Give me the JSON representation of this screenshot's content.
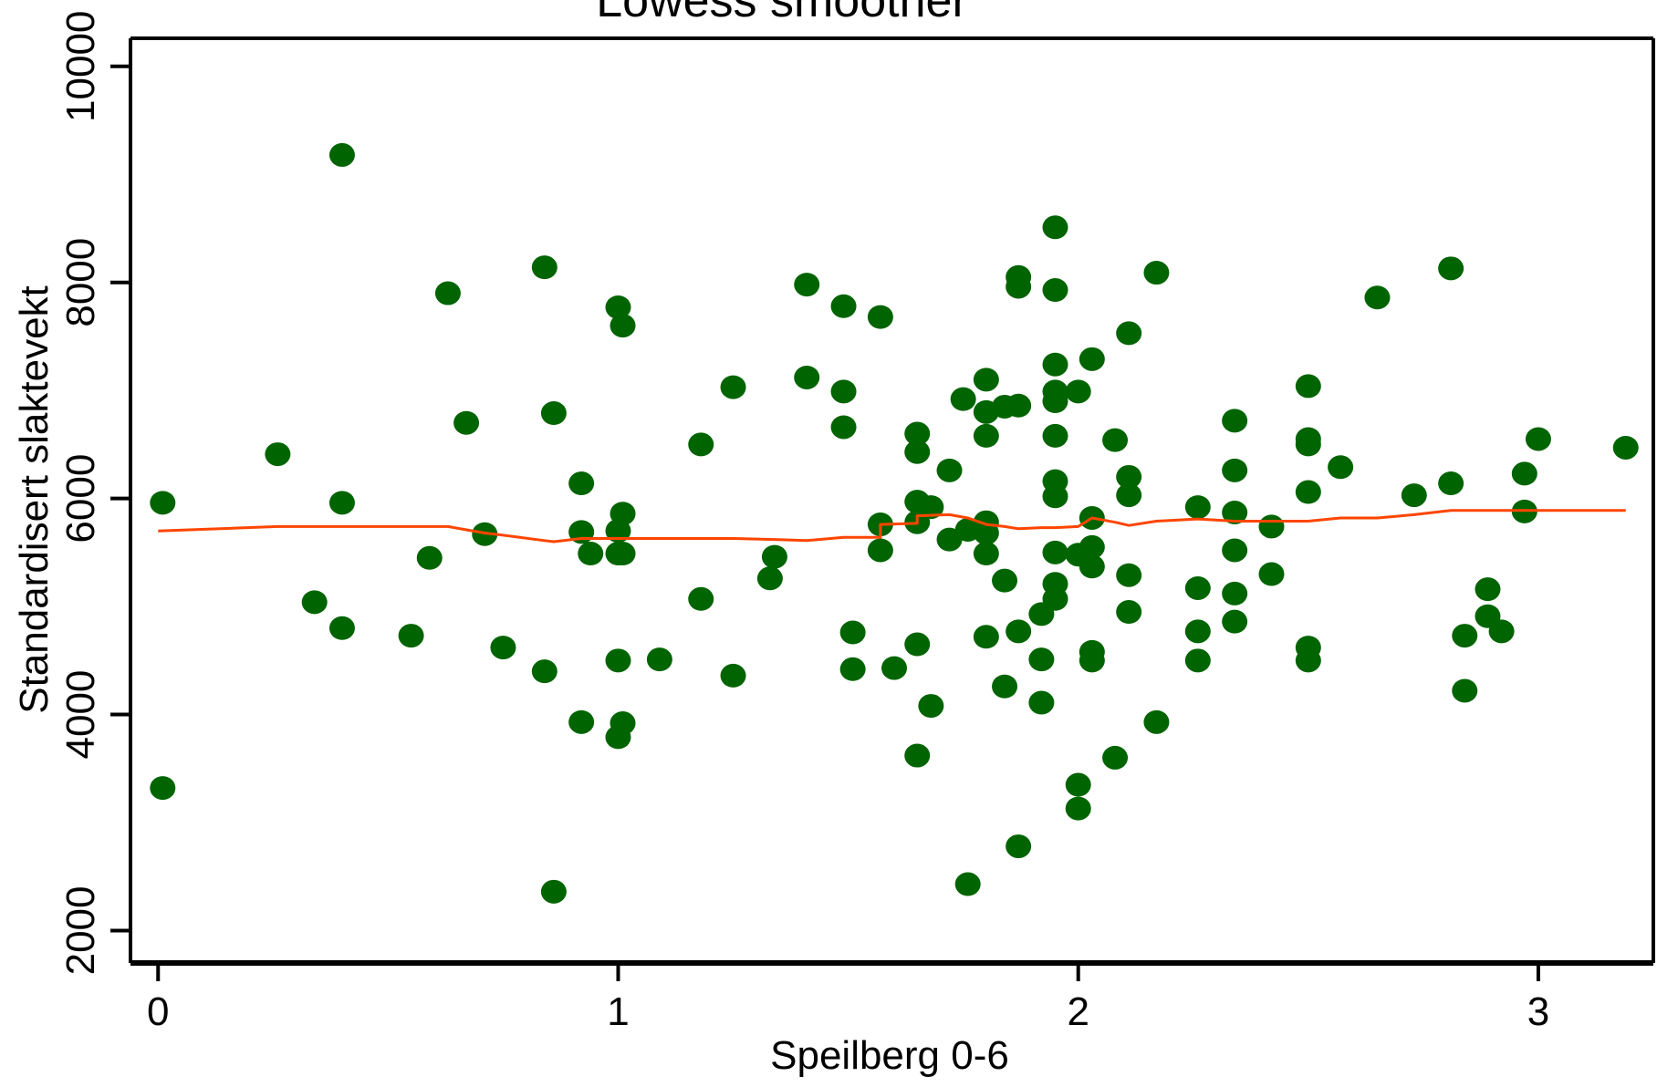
{
  "chart_data": {
    "type": "scatter",
    "title": "Lowess smoother",
    "xlabel": "Speilberg 0-6",
    "ylabel": "Standardisert slaktevekt",
    "xlim": [
      -0.06,
      3.25
    ],
    "ylim": [
      1700,
      10260
    ],
    "xticks": [
      0,
      1,
      2,
      3
    ],
    "yticks": [
      2000,
      4000,
      6000,
      8000,
      10000
    ],
    "grid": false,
    "colors": {
      "points": "#006400",
      "smoother": "#ff4500"
    },
    "series": [
      {
        "kind": "scatter",
        "points": [
          [
            0.01,
            5960
          ],
          [
            0.01,
            3320
          ],
          [
            0.26,
            6410
          ],
          [
            0.34,
            5040
          ],
          [
            0.4,
            9180
          ],
          [
            0.4,
            5960
          ],
          [
            0.4,
            4800
          ],
          [
            0.55,
            4730
          ],
          [
            0.59,
            5450
          ],
          [
            0.63,
            7900
          ],
          [
            0.67,
            6700
          ],
          [
            0.71,
            5670
          ],
          [
            0.75,
            4620
          ],
          [
            0.84,
            8140
          ],
          [
            0.84,
            4400
          ],
          [
            0.86,
            6790
          ],
          [
            0.86,
            2360
          ],
          [
            0.92,
            6140
          ],
          [
            0.92,
            5690
          ],
          [
            0.92,
            3930
          ],
          [
            0.94,
            5490
          ],
          [
            1.0,
            7770
          ],
          [
            1.0,
            5700
          ],
          [
            1.0,
            5490
          ],
          [
            1.0,
            4500
          ],
          [
            1.0,
            3790
          ],
          [
            1.01,
            7600
          ],
          [
            1.01,
            5860
          ],
          [
            1.01,
            5490
          ],
          [
            1.01,
            3920
          ],
          [
            1.09,
            4510
          ],
          [
            1.18,
            6500
          ],
          [
            1.18,
            5070
          ],
          [
            1.25,
            7030
          ],
          [
            1.25,
            4360
          ],
          [
            1.34,
            5460
          ],
          [
            1.33,
            5260
          ],
          [
            1.41,
            7980
          ],
          [
            1.41,
            7120
          ],
          [
            1.49,
            7780
          ],
          [
            1.49,
            6990
          ],
          [
            1.49,
            6660
          ],
          [
            1.51,
            4760
          ],
          [
            1.51,
            4420
          ],
          [
            1.57,
            7680
          ],
          [
            1.57,
            5760
          ],
          [
            1.57,
            5520
          ],
          [
            1.6,
            4430
          ],
          [
            1.65,
            6600
          ],
          [
            1.65,
            6430
          ],
          [
            1.65,
            5970
          ],
          [
            1.65,
            5780
          ],
          [
            1.65,
            4650
          ],
          [
            1.65,
            3620
          ],
          [
            1.68,
            5920
          ],
          [
            1.68,
            4080
          ],
          [
            1.72,
            6260
          ],
          [
            1.72,
            5620
          ],
          [
            1.75,
            6920
          ],
          [
            1.76,
            5710
          ],
          [
            1.76,
            2430
          ],
          [
            1.8,
            7100
          ],
          [
            1.8,
            6800
          ],
          [
            1.8,
            6580
          ],
          [
            1.8,
            5780
          ],
          [
            1.8,
            5680
          ],
          [
            1.8,
            5490
          ],
          [
            1.8,
            4720
          ],
          [
            1.84,
            6850
          ],
          [
            1.84,
            5240
          ],
          [
            1.84,
            4260
          ],
          [
            1.87,
            8050
          ],
          [
            1.87,
            7960
          ],
          [
            1.87,
            6860
          ],
          [
            1.87,
            4770
          ],
          [
            1.87,
            2780
          ],
          [
            1.92,
            4930
          ],
          [
            1.92,
            4510
          ],
          [
            1.92,
            4110
          ],
          [
            1.95,
            8510
          ],
          [
            1.95,
            7930
          ],
          [
            1.95,
            7240
          ],
          [
            1.95,
            6990
          ],
          [
            1.95,
            6900
          ],
          [
            1.95,
            6580
          ],
          [
            1.95,
            6160
          ],
          [
            1.95,
            6020
          ],
          [
            1.95,
            5500
          ],
          [
            1.95,
            5210
          ],
          [
            1.95,
            5070
          ],
          [
            2.0,
            6990
          ],
          [
            2.0,
            5480
          ],
          [
            2.0,
            3350
          ],
          [
            2.0,
            3130
          ],
          [
            2.03,
            7290
          ],
          [
            2.03,
            5820
          ],
          [
            2.03,
            5550
          ],
          [
            2.03,
            5370
          ],
          [
            2.03,
            4580
          ],
          [
            2.03,
            4500
          ],
          [
            2.08,
            6540
          ],
          [
            2.08,
            3600
          ],
          [
            2.11,
            7530
          ],
          [
            2.11,
            6200
          ],
          [
            2.11,
            6030
          ],
          [
            2.11,
            5290
          ],
          [
            2.11,
            4950
          ],
          [
            2.17,
            8090
          ],
          [
            2.17,
            3930
          ],
          [
            2.26,
            5920
          ],
          [
            2.26,
            5170
          ],
          [
            2.26,
            4770
          ],
          [
            2.26,
            4500
          ],
          [
            2.34,
            6720
          ],
          [
            2.34,
            6260
          ],
          [
            2.34,
            5870
          ],
          [
            2.34,
            5520
          ],
          [
            2.34,
            5120
          ],
          [
            2.34,
            4860
          ],
          [
            2.42,
            5740
          ],
          [
            2.42,
            5300
          ],
          [
            2.5,
            7040
          ],
          [
            2.5,
            6550
          ],
          [
            2.5,
            6500
          ],
          [
            2.5,
            6060
          ],
          [
            2.5,
            4620
          ],
          [
            2.5,
            4500
          ],
          [
            2.57,
            6290
          ],
          [
            2.65,
            7860
          ],
          [
            2.73,
            6030
          ],
          [
            2.81,
            8130
          ],
          [
            2.81,
            6140
          ],
          [
            2.84,
            4730
          ],
          [
            2.84,
            4220
          ],
          [
            2.89,
            5160
          ],
          [
            2.89,
            4910
          ],
          [
            2.92,
            4770
          ],
          [
            2.97,
            6230
          ],
          [
            2.97,
            5880
          ],
          [
            3.0,
            6550
          ],
          [
            3.19,
            6470
          ]
        ]
      },
      {
        "kind": "line",
        "name": "Lowess smoother",
        "points": [
          [
            0.0,
            5700
          ],
          [
            0.26,
            5740
          ],
          [
            0.4,
            5740
          ],
          [
            0.55,
            5740
          ],
          [
            0.63,
            5740
          ],
          [
            0.67,
            5710
          ],
          [
            0.71,
            5680
          ],
          [
            0.75,
            5660
          ],
          [
            0.84,
            5610
          ],
          [
            0.86,
            5600
          ],
          [
            0.92,
            5630
          ],
          [
            1.0,
            5630
          ],
          [
            1.09,
            5630
          ],
          [
            1.18,
            5630
          ],
          [
            1.25,
            5630
          ],
          [
            1.34,
            5620
          ],
          [
            1.41,
            5610
          ],
          [
            1.49,
            5640
          ],
          [
            1.57,
            5640
          ],
          [
            1.57,
            5760
          ],
          [
            1.65,
            5770
          ],
          [
            1.65,
            5840
          ],
          [
            1.72,
            5850
          ],
          [
            1.76,
            5820
          ],
          [
            1.8,
            5760
          ],
          [
            1.84,
            5740
          ],
          [
            1.87,
            5720
          ],
          [
            1.92,
            5730
          ],
          [
            1.95,
            5730
          ],
          [
            2.0,
            5740
          ],
          [
            2.03,
            5820
          ],
          [
            2.08,
            5780
          ],
          [
            2.11,
            5750
          ],
          [
            2.17,
            5790
          ],
          [
            2.26,
            5810
          ],
          [
            2.34,
            5790
          ],
          [
            2.42,
            5790
          ],
          [
            2.5,
            5790
          ],
          [
            2.57,
            5820
          ],
          [
            2.65,
            5820
          ],
          [
            2.73,
            5850
          ],
          [
            2.81,
            5890
          ],
          [
            2.89,
            5890
          ],
          [
            3.0,
            5890
          ],
          [
            3.19,
            5890
          ]
        ]
      }
    ]
  }
}
